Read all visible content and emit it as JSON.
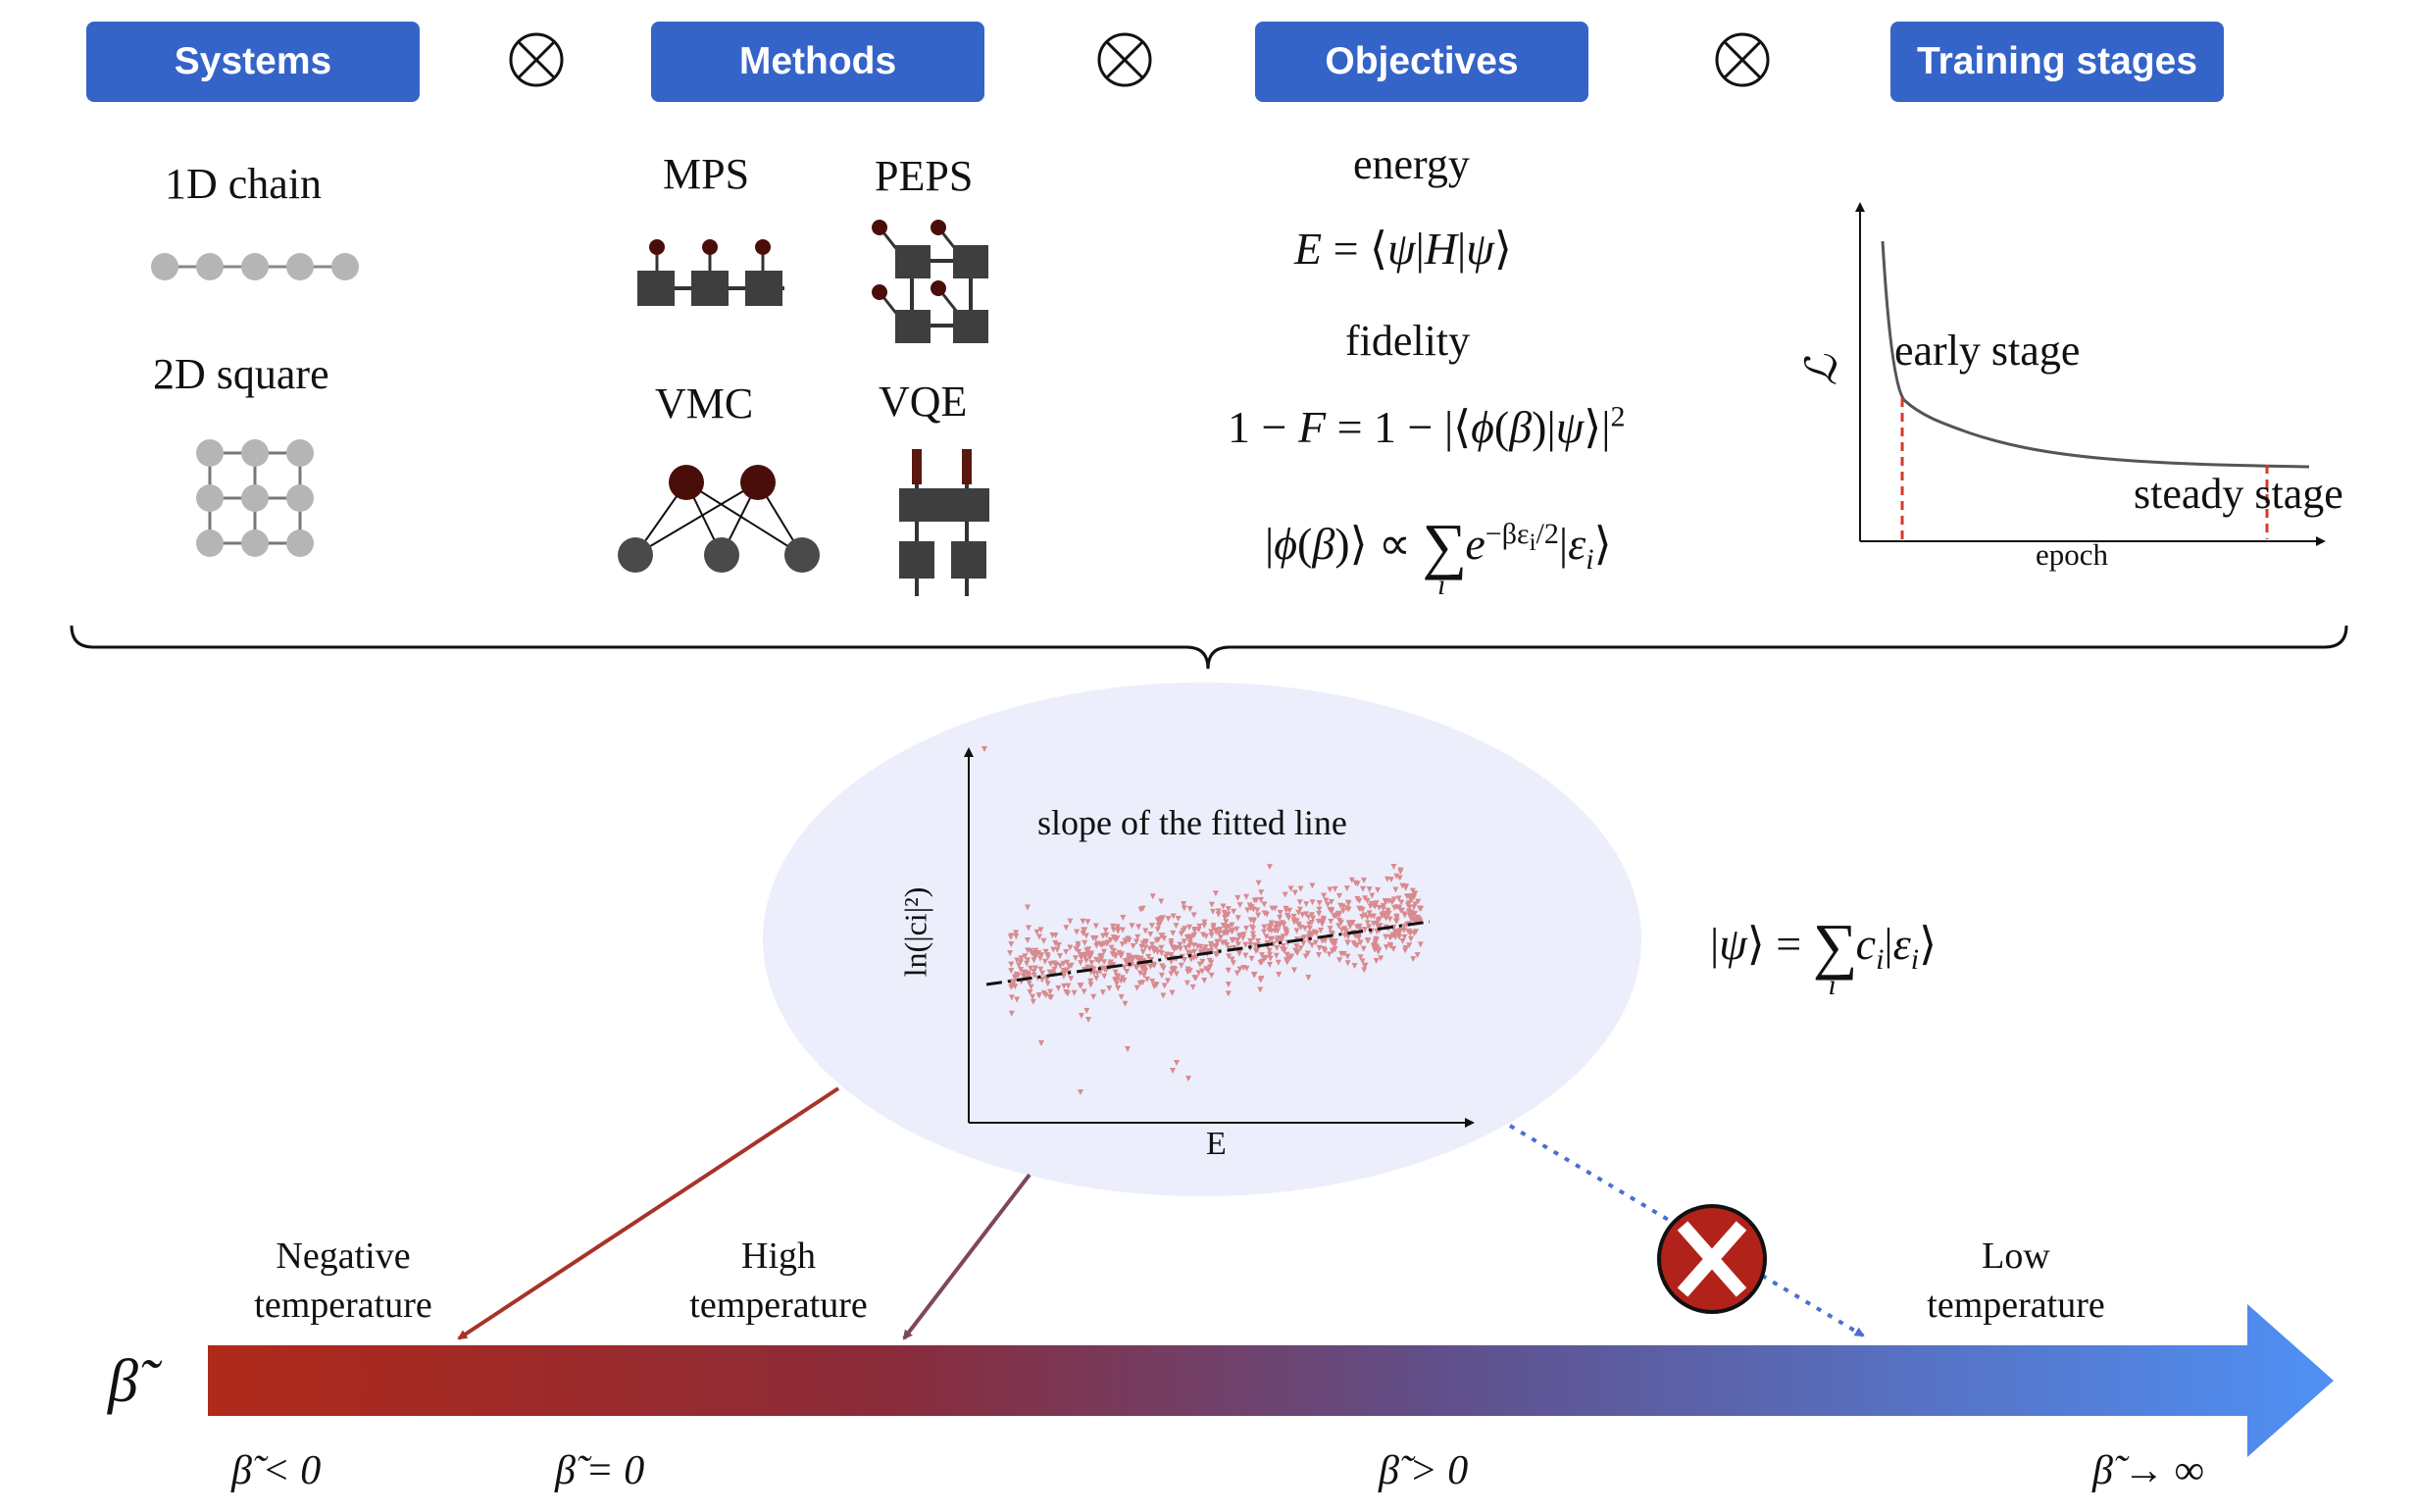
{
  "headers": {
    "systems": "Systems",
    "methods": "Methods",
    "objectives": "Objectives",
    "training": "Training stages"
  },
  "systems": {
    "chain": "1D chain",
    "square": "2D square"
  },
  "methods": {
    "mps": "MPS",
    "peps": "PEPS",
    "vmc": "VMC",
    "vqe": "VQE"
  },
  "objectives": {
    "energy_title": "energy",
    "fidelity_title": "fidelity"
  },
  "training_plot": {
    "ylabel": "ℒ",
    "xlabel": "epoch",
    "early": "early stage",
    "steady": "steady stage"
  },
  "scatter": {
    "title": "slope of the fitted line",
    "xlabel": "E",
    "ylabel": "ln(|ci|²)"
  },
  "temperatures": {
    "negative": [
      "Negative",
      "temperature"
    ],
    "high": [
      "High",
      "temperature"
    ],
    "low": [
      "Low",
      "temperature"
    ]
  },
  "axis": {
    "symbol": "β̃",
    "ticks": [
      "β̃ < 0",
      "β̃ = 0",
      "β̃ > 0",
      "β̃ → ∞"
    ]
  },
  "colors": {
    "header": "#3464c8",
    "arrow_start": "#b02a1a",
    "arrow_end": "#4f90f5",
    "ellipse": "#eceefb",
    "scatter_points": "#d88a8f",
    "reject": "#b0221a"
  }
}
